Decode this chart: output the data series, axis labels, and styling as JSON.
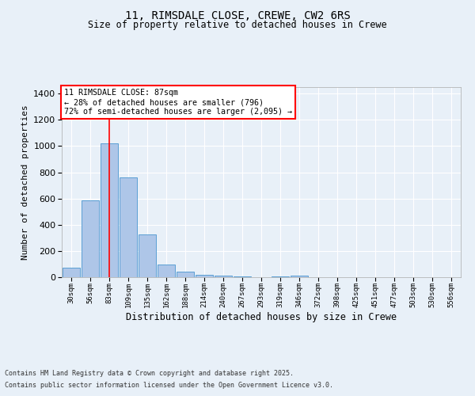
{
  "title1": "11, RIMSDALE CLOSE, CREWE, CW2 6RS",
  "title2": "Size of property relative to detached houses in Crewe",
  "xlabel": "Distribution of detached houses by size in Crewe",
  "ylabel": "Number of detached properties",
  "categories": [
    "30sqm",
    "56sqm",
    "83sqm",
    "109sqm",
    "135sqm",
    "162sqm",
    "188sqm",
    "214sqm",
    "240sqm",
    "267sqm",
    "293sqm",
    "319sqm",
    "346sqm",
    "372sqm",
    "398sqm",
    "425sqm",
    "451sqm",
    "477sqm",
    "503sqm",
    "530sqm",
    "556sqm"
  ],
  "values": [
    70,
    585,
    1020,
    760,
    325,
    95,
    45,
    20,
    10,
    5,
    3,
    5,
    15,
    0,
    0,
    0,
    0,
    0,
    0,
    0,
    0
  ],
  "bar_color": "#aec6e8",
  "bar_edgecolor": "#5a9fd4",
  "background_color": "#e8f0f8",
  "grid_color": "#ffffff",
  "annotation_box_text": "11 RIMSDALE CLOSE: 87sqm\n← 28% of detached houses are smaller (796)\n72% of semi-detached houses are larger (2,095) →",
  "redline_bar_index": 2,
  "ylim": [
    0,
    1450
  ],
  "yticks": [
    0,
    200,
    400,
    600,
    800,
    1000,
    1200,
    1400
  ],
  "footer1": "Contains HM Land Registry data © Crown copyright and database right 2025.",
  "footer2": "Contains public sector information licensed under the Open Government Licence v3.0."
}
